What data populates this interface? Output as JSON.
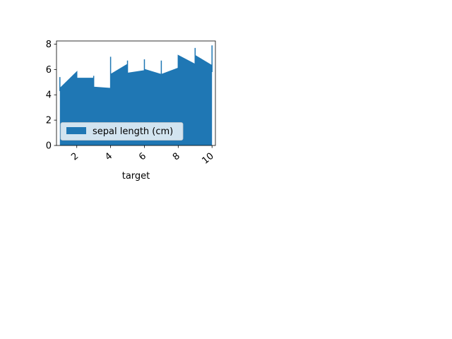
{
  "chart_data": {
    "type": "area",
    "title": "",
    "xlabel": "target",
    "ylabel": "",
    "xlim": [
      0.8,
      10.2
    ],
    "ylim": [
      0,
      8.25
    ],
    "xticks": [
      2,
      4,
      6,
      8,
      10
    ],
    "yticks": [
      0,
      2,
      4,
      6,
      8
    ],
    "grid": false,
    "legend": {
      "position": "lower-left"
    },
    "series": [
      {
        "name": "sepal length (cm)",
        "color": "#1f77b4",
        "x": [
          1.0,
          1.0,
          1.0,
          1.0,
          2.0,
          2.0,
          2.0,
          3.0,
          3.0,
          3.0,
          4.0,
          4.0,
          4.0,
          5.0,
          5.0,
          5.0,
          6.0,
          6.0,
          6.0,
          7.0,
          7.0,
          7.0,
          8.0,
          8.0,
          9.0,
          9.0,
          9.0,
          10.0,
          10.0,
          10.0
        ],
        "y": [
          4.4,
          5.4,
          4.3,
          4.5,
          5.8,
          5.6,
          5.3,
          5.3,
          5.5,
          4.6,
          4.5,
          7.0,
          5.6,
          6.4,
          6.7,
          5.7,
          5.9,
          6.8,
          6.0,
          5.6,
          6.7,
          5.6,
          6.1,
          7.1,
          6.4,
          7.7,
          7.1,
          6.3,
          7.9,
          5.8
        ]
      }
    ]
  }
}
